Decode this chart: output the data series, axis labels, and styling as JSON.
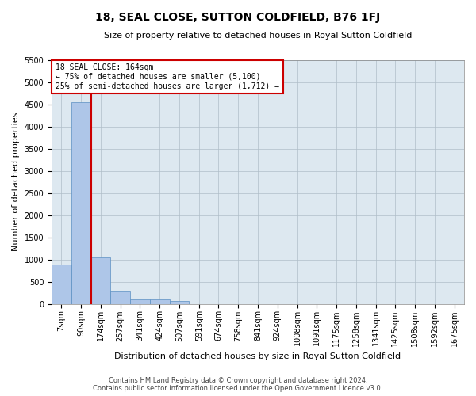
{
  "title": "18, SEAL CLOSE, SUTTON COLDFIELD, B76 1FJ",
  "subtitle": "Size of property relative to detached houses in Royal Sutton Coldfield",
  "xlabel": "Distribution of detached houses by size in Royal Sutton Coldfield",
  "ylabel": "Number of detached properties",
  "footer_line1": "Contains HM Land Registry data © Crown copyright and database right 2024.",
  "footer_line2": "Contains public sector information licensed under the Open Government Licence v3.0.",
  "annotation_title": "18 SEAL CLOSE: 164sqm",
  "annotation_line1": "← 75% of detached houses are smaller (5,100)",
  "annotation_line2": "25% of semi-detached houses are larger (1,712) →",
  "categories": [
    "7sqm",
    "90sqm",
    "174sqm",
    "257sqm",
    "341sqm",
    "424sqm",
    "507sqm",
    "591sqm",
    "674sqm",
    "758sqm",
    "841sqm",
    "924sqm",
    "1008sqm",
    "1091sqm",
    "1175sqm",
    "1258sqm",
    "1341sqm",
    "1425sqm",
    "1508sqm",
    "1592sqm",
    "1675sqm"
  ],
  "values": [
    880,
    4540,
    1050,
    280,
    90,
    90,
    55,
    0,
    0,
    0,
    0,
    0,
    0,
    0,
    0,
    0,
    0,
    0,
    0,
    0,
    0
  ],
  "bar_color": "#aec6e8",
  "bar_edge_color": "#5a8fc2",
  "vline_color": "#cc0000",
  "vline_bin": 1,
  "annotation_box_color": "#cc0000",
  "background_color": "#ffffff",
  "plot_bg_color": "#dde8f0",
  "grid_color": "#b0bec8",
  "ylim": [
    0,
    5500
  ],
  "yticks": [
    0,
    500,
    1000,
    1500,
    2000,
    2500,
    3000,
    3500,
    4000,
    4500,
    5000,
    5500
  ],
  "title_fontsize": 10,
  "subtitle_fontsize": 8,
  "ylabel_fontsize": 8,
  "xlabel_fontsize": 8,
  "tick_fontsize": 7,
  "annotation_fontsize": 7,
  "footer_fontsize": 6
}
